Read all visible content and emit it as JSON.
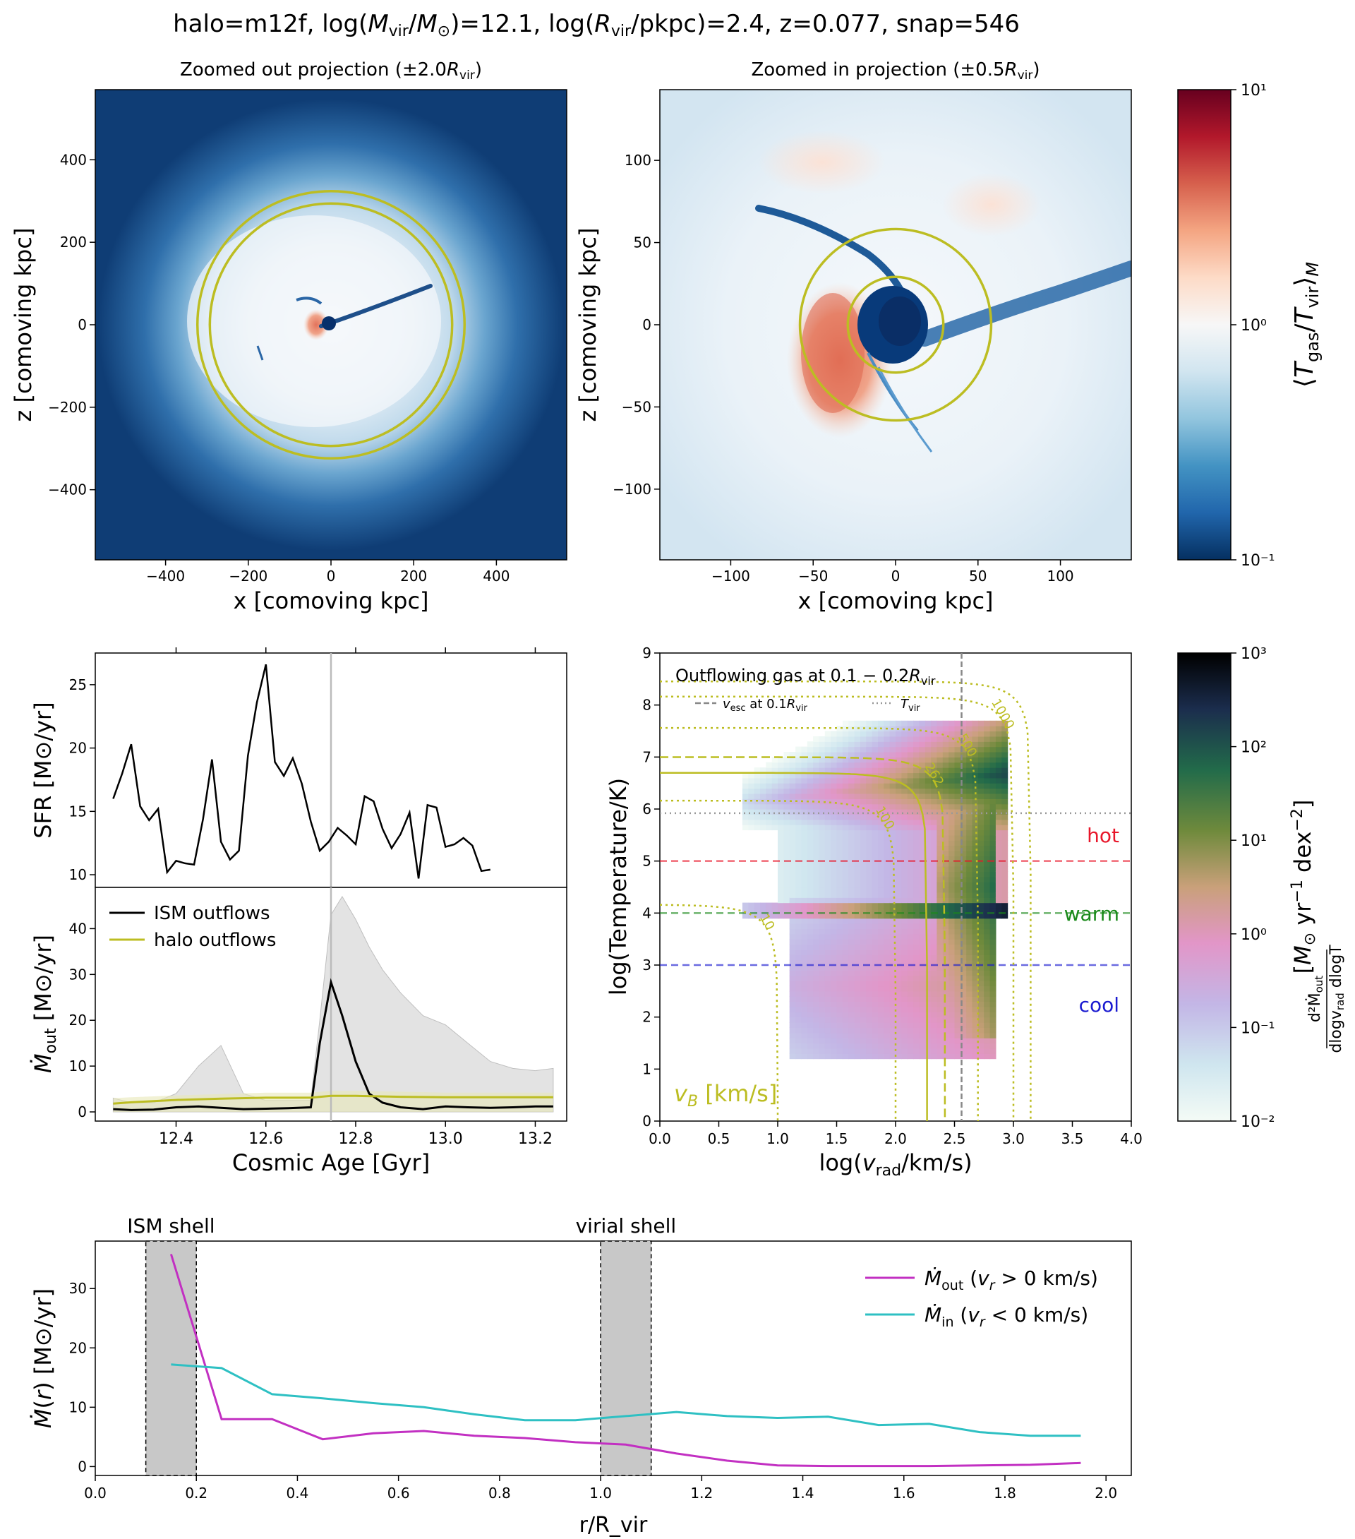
{
  "suptitle": "halo=m12f, log(M_vir/M_⊙)=12.1, log(R_vir/pkpc)=2.4, z=0.077, snap=546",
  "colors": {
    "halo_yellow": "#bcbd22",
    "ism_black": "#000000",
    "mout_magenta": "#c230c2",
    "min_cyan": "#2ec0c3",
    "hot_red": "#e8162a",
    "warm_green": "#1a8a1a",
    "cool_blue": "#1a1ad0",
    "shell_gray": "#c8c8c8"
  },
  "chart_data": [
    {
      "id": "zoomed_out_projection",
      "type": "heatmap",
      "title": "Zoomed out projection (±2.0R_vir)",
      "xlabel": "x [comoving kpc]",
      "ylabel": "z [comoving kpc]",
      "xlim": [
        -570,
        570
      ],
      "ylim": [
        -570,
        570
      ],
      "xticks": [
        -400,
        -200,
        0,
        200,
        400
      ],
      "yticks": [
        -400,
        -200,
        0,
        200,
        400
      ],
      "xtick_labels": [
        "−400",
        "−200",
        "0",
        "200",
        "400"
      ],
      "ytick_labels": [
        "−400",
        "−200",
        "0",
        "200",
        "400"
      ],
      "circles_radius_kpc": [
        293,
        323
      ],
      "colormap": "RdBu_r"
    },
    {
      "id": "zoomed_in_projection",
      "type": "heatmap",
      "title": "Zoomed in projection (±0.5R_vir)",
      "xlabel": "x [comoving kpc]",
      "ylabel": "z [comoving kpc]",
      "xlim": [
        -143,
        143
      ],
      "ylim": [
        -143,
        143
      ],
      "xticks": [
        -100,
        -50,
        0,
        50,
        100
      ],
      "yticks": [
        -100,
        -50,
        0,
        50,
        100
      ],
      "xtick_labels": [
        "−100",
        "−50",
        "0",
        "50",
        "100"
      ],
      "ytick_labels": [
        "−100",
        "−50",
        "0",
        "50",
        "100"
      ],
      "circles_radius_kpc": [
        29,
        58
      ],
      "colormap": "RdBu_r"
    },
    {
      "id": "temperature_colorbar",
      "type": "heatmap",
      "label": "⟨T_gas/T_vir⟩_M",
      "scale": "log",
      "range": [
        0.1,
        10
      ],
      "tick_labels": [
        "10¹",
        "10⁰",
        "10⁻¹"
      ]
    },
    {
      "id": "sfr_history",
      "type": "line",
      "ylabel": "SFR [M⊙/yr]",
      "xlim": [
        12.22,
        13.27
      ],
      "ylim": [
        9,
        27.5
      ],
      "yticks": [
        10,
        15,
        20,
        25
      ],
      "x": [
        12.26,
        12.28,
        12.3,
        12.32,
        12.34,
        12.36,
        12.38,
        12.4,
        12.42,
        12.44,
        12.46,
        12.48,
        12.5,
        12.52,
        12.54,
        12.56,
        12.58,
        12.6,
        12.62,
        12.64,
        12.66,
        12.68,
        12.7,
        12.72,
        12.74,
        12.76,
        12.78,
        12.8,
        12.82,
        12.84,
        12.86,
        12.88,
        12.9,
        12.92,
        12.94,
        12.96,
        12.98,
        13.0,
        13.02,
        13.04,
        13.06,
        13.08,
        13.1,
        13.12,
        13.14,
        13.16,
        13.18,
        13.2,
        13.22,
        13.24
      ],
      "y": [
        16,
        18,
        20.3,
        15.4,
        14.3,
        15.2,
        10.2,
        11.1,
        10.9,
        10.8,
        14.4,
        19.1,
        12.6,
        11.2,
        11.9,
        19.4,
        23.6,
        26.6,
        18.9,
        17.8,
        19.2,
        17.2,
        14.2,
        11.9,
        12.6,
        13.7,
        13.1,
        12.4,
        16.2,
        15.8,
        13.6,
        12.1,
        13.2,
        14.9,
        9.7,
        15.5,
        15.3,
        12.2,
        12.4,
        12.9,
        12.3,
        10.3,
        10.4,
        null,
        null,
        null,
        null,
        null,
        null,
        null
      ],
      "vline_x": 12.745
    },
    {
      "id": "outflow_history",
      "type": "line",
      "xlabel": "Cosmic Age [Gyr]",
      "ylabel": "Ṁ_out [M⊙/yr]",
      "xlim": [
        12.22,
        13.27
      ],
      "ylim": [
        -2,
        49
      ],
      "xticks": [
        12.4,
        12.6,
        12.8,
        13.0,
        13.2
      ],
      "xtick_labels": [
        "12.4",
        "12.6",
        "12.8",
        "13.0",
        "13.2"
      ],
      "yticks": [
        0,
        10,
        20,
        30,
        40
      ],
      "vline_x": 12.745,
      "series": [
        {
          "name": "ISM outflows",
          "color": "#000000",
          "x": [
            12.26,
            12.3,
            12.35,
            12.4,
            12.45,
            12.5,
            12.55,
            12.6,
            12.65,
            12.7,
            12.72,
            12.745,
            12.77,
            12.8,
            12.83,
            12.86,
            12.9,
            12.95,
            13.0,
            13.05,
            13.1,
            13.15,
            13.2,
            13.24
          ],
          "y": [
            0.6,
            0.4,
            0.5,
            1.0,
            1.2,
            0.9,
            0.6,
            0.7,
            0.8,
            1.0,
            15.0,
            28.3,
            21.0,
            11.0,
            4.0,
            2.0,
            1.0,
            0.6,
            1.2,
            1.0,
            0.9,
            1.0,
            1.2,
            1.2
          ],
          "band_high": [
            3.0,
            2.0,
            2.0,
            4.0,
            10.0,
            14.5,
            4.0,
            2.5,
            2.5,
            2.5,
            20.0,
            43.0,
            47.0,
            42.0,
            36.0,
            31.0,
            26.0,
            21.0,
            19.0,
            15.0,
            11.0,
            9.5,
            9.0,
            9.5
          ],
          "band_low": [
            0,
            0,
            0,
            0,
            0,
            0,
            0,
            0,
            0,
            0,
            0,
            0,
            0,
            0,
            0,
            0,
            0,
            0,
            0,
            0,
            0,
            0,
            0,
            0
          ]
        },
        {
          "name": "halo outflows",
          "color": "#bcbd22",
          "x": [
            12.26,
            12.3,
            12.4,
            12.5,
            12.6,
            12.7,
            12.745,
            12.8,
            12.9,
            13.0,
            13.1,
            13.24
          ],
          "y": [
            1.8,
            2.1,
            2.6,
            2.9,
            3.1,
            3.1,
            3.5,
            3.5,
            3.3,
            3.2,
            3.2,
            3.2
          ],
          "band_high": [
            3.0,
            3.2,
            3.6,
            3.9,
            4.2,
            4.2,
            4.6,
            4.6,
            4.4,
            4.2,
            4.2,
            4.2
          ],
          "band_low": [
            0,
            0,
            0,
            0,
            0,
            0,
            0,
            0,
            0,
            0,
            0,
            0
          ]
        }
      ]
    },
    {
      "id": "phase_diagram",
      "type": "heatmap",
      "title": "Outflowing gas at 0.1 − 0.2R_vir",
      "xlabel": "log(v_rad/km/s)",
      "ylabel": "log(Temperature/K)",
      "xlim": [
        0,
        4
      ],
      "ylim": [
        0,
        9
      ],
      "xticks": [
        0.0,
        0.5,
        1.0,
        1.5,
        2.0,
        2.5,
        3.0,
        3.5,
        4.0
      ],
      "xtick_labels": [
        "0.0",
        "0.5",
        "1.0",
        "1.5",
        "2.0",
        "2.5",
        "3.0",
        "3.5",
        "4.0"
      ],
      "yticks": [
        0,
        1,
        2,
        3,
        4,
        5,
        6,
        7,
        8,
        9
      ],
      "vesc_x": 2.56,
      "tvir_y": 5.92,
      "legend": [
        "v_esc at 0.1R_vir",
        "T_vir"
      ],
      "phase_lines": [
        {
          "label": "hot",
          "y": 5,
          "color": "#e8162a"
        },
        {
          "label": "warm",
          "y": 4,
          "color": "#1a8a1a"
        },
        {
          "label": "cool",
          "y": 3,
          "color": "#1a1ad0"
        }
      ],
      "bernoulli_label": "v_B [km/s]",
      "bernoulli_contours": [
        {
          "label": "10",
          "v": 10,
          "style": "dotted"
        },
        {
          "label": "100",
          "v": 100,
          "style": "dotted"
        },
        {
          "label": "262",
          "v": 262,
          "style": "dashed"
        },
        {
          "label": "500",
          "v": 500,
          "style": "dotted"
        },
        {
          "label": "1000",
          "v": 1000,
          "style": "dotted"
        },
        {
          "label": "",
          "v": 185,
          "style": "solid"
        },
        {
          "label": "",
          "v": 1400,
          "style": "dotted"
        }
      ]
    },
    {
      "id": "outflow_colorbar",
      "type": "heatmap",
      "label": "d²Ṁ_out / dlogv_rad dlogT [M⊙ yr⁻¹ dex⁻²]",
      "scale": "log",
      "range": [
        0.01,
        1000
      ],
      "tick_labels": [
        "10³",
        "10²",
        "10¹",
        "10⁰",
        "10⁻¹",
        "10⁻²"
      ]
    },
    {
      "id": "radial_profile",
      "type": "line",
      "xlabel": "r/R_vir",
      "ylabel": "Ṁ(r) [M⊙/yr]",
      "xlim": [
        0,
        2.05
      ],
      "ylim": [
        -1.5,
        38
      ],
      "xticks": [
        0.0,
        0.2,
        0.4,
        0.6,
        0.8,
        1.0,
        1.2,
        1.4,
        1.6,
        1.8,
        2.0
      ],
      "xtick_labels": [
        "0.0",
        "0.2",
        "0.4",
        "0.6",
        "0.8",
        "1.0",
        "1.2",
        "1.4",
        "1.6",
        "1.8",
        "2.0"
      ],
      "yticks": [
        0,
        10,
        20,
        30
      ],
      "shells": [
        {
          "label": "ISM shell",
          "x0": 0.1,
          "x1": 0.2
        },
        {
          "label": "virial shell",
          "x0": 1.0,
          "x1": 1.1
        }
      ],
      "series": [
        {
          "name": "Ṁ_out (v_r > 0 km/s)",
          "color": "#c230c2",
          "x": [
            0.15,
            0.25,
            0.35,
            0.45,
            0.55,
            0.65,
            0.75,
            0.85,
            0.95,
            1.05,
            1.15,
            1.25,
            1.35,
            1.45,
            1.55,
            1.65,
            1.75,
            1.85,
            1.95
          ],
          "y": [
            35.8,
            8.0,
            8.0,
            4.6,
            5.6,
            6.0,
            5.2,
            4.8,
            4.1,
            3.7,
            2.2,
            1.0,
            0.2,
            0.1,
            0.1,
            0.1,
            0.2,
            0.3,
            0.6
          ]
        },
        {
          "name": "Ṁ_in (v_r < 0 km/s)",
          "color": "#2ec0c3",
          "x": [
            0.15,
            0.25,
            0.35,
            0.45,
            0.55,
            0.65,
            0.75,
            0.85,
            0.95,
            1.05,
            1.15,
            1.25,
            1.35,
            1.45,
            1.55,
            1.65,
            1.75,
            1.85,
            1.95
          ],
          "y": [
            17.2,
            16.6,
            12.2,
            11.5,
            10.7,
            10.0,
            8.8,
            7.8,
            7.8,
            8.5,
            9.2,
            8.5,
            8.2,
            8.4,
            7.0,
            7.2,
            5.8,
            5.2,
            5.2
          ]
        }
      ]
    }
  ]
}
